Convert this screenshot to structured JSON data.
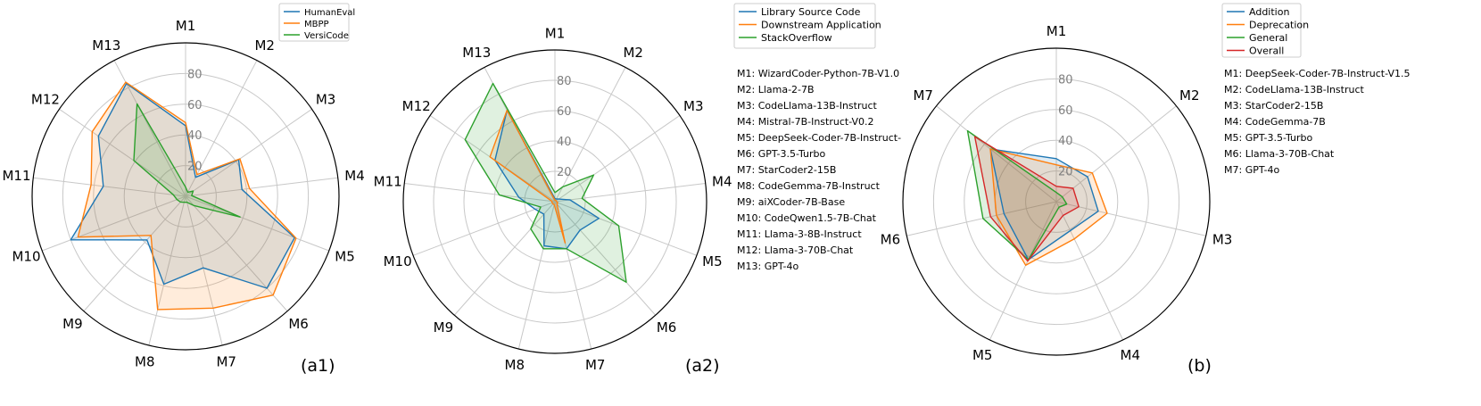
{
  "chart_data": [
    {
      "type": "radar",
      "panel_label": "(a1)",
      "axes": [
        "M1",
        "M2",
        "M3",
        "M4",
        "M5",
        "M6",
        "M7",
        "M8",
        "M9",
        "M10",
        "M11",
        "M12",
        "M13"
      ],
      "rlim": [
        0,
        100
      ],
      "rticks": [
        20,
        40,
        60,
        80
      ],
      "grid": true,
      "legend_placement": "top-right",
      "series": [
        {
          "name": "HumanEval",
          "color": "#1f77b4",
          "values": [
            46,
            14,
            42,
            37,
            76,
            80,
            48,
            59,
            38,
            80,
            54,
            69,
            83
          ]
        },
        {
          "name": "MBPP",
          "color": "#ff7f0e",
          "values": [
            48,
            16,
            43,
            42,
            77,
            86,
            75,
            76,
            34,
            75,
            62,
            74,
            84
          ]
        },
        {
          "name": "VersiCode",
          "color": "#2ca02c",
          "values": [
            6,
            3,
            6,
            4,
            38,
            8,
            4,
            4,
            5,
            6,
            8,
            41,
            68
          ]
        }
      ]
    },
    {
      "type": "radar",
      "panel_label": "(a2)",
      "axes": [
        "M1",
        "M2",
        "M3",
        "M4",
        "M5",
        "M6",
        "M7",
        "M8",
        "M9",
        "M10",
        "M11",
        "M12",
        "M13"
      ],
      "rlim": [
        0,
        100
      ],
      "rticks": [
        20,
        40,
        60,
        80
      ],
      "grid": true,
      "legend_placement": "top-right",
      "series": [
        {
          "name": "Library Source Code",
          "color": "#1f77b4",
          "values": [
            2,
            2,
            3,
            10,
            31,
            25,
            32,
            30,
            11,
            14,
            24,
            48,
            68
          ]
        },
        {
          "name": "Downstream Application",
          "color": "#ff7f0e",
          "values": [
            1,
            1,
            1,
            1,
            2,
            2,
            28,
            2,
            2,
            2,
            2,
            52,
            68
          ]
        },
        {
          "name": "StackOverflow",
          "color": "#2ca02c",
          "values": [
            6,
            11,
            31,
            18,
            45,
            71,
            32,
            32,
            24,
            10,
            37,
            72,
            88
          ]
        }
      ],
      "models": [
        "M1: WizardCoder-Python-7B-V1.0",
        "M2: Llama-2-7B",
        "M3: CodeLlama-13B-Instruct",
        "M4: Mistral-7B-Instruct-V0.2",
        "M5: DeepSeek-Coder-7B-Instruct-",
        "M6: GPT-3.5-Turbo",
        "M7: StarCoder2-15B",
        "M8: CodeGemma-7B-Instruct",
        "M9: aiXCoder-7B-Base",
        "M10: CodeQwen1.5-7B-Chat",
        "M11: Llama-3-8B-Instruct",
        "M12: Llama-3-70B-Chat",
        "M13: GPT-4o"
      ]
    },
    {
      "type": "radar",
      "panel_label": "(b)",
      "axes": [
        "M1",
        "M2",
        "M3",
        "M4",
        "M5",
        "M6",
        "M7"
      ],
      "rlim": [
        0,
        100
      ],
      "rticks": [
        20,
        40,
        60,
        80
      ],
      "grid": true,
      "legend_placement": "top-right",
      "series": [
        {
          "name": "Addition",
          "color": "#1f77b4",
          "values": [
            28,
            26,
            28,
            21,
            42,
            35,
            55
          ]
        },
        {
          "name": "Deprecation",
          "color": "#ff7f0e",
          "values": [
            24,
            30,
            34,
            27,
            46,
            40,
            55
          ]
        },
        {
          "name": "General",
          "color": "#2ca02c",
          "values": [
            6,
            5,
            7,
            4,
            42,
            49,
            74
          ]
        },
        {
          "name": "Overall",
          "color": "#d62728",
          "values": [
            10,
            14,
            15,
            10,
            43,
            44,
            68
          ]
        }
      ],
      "models": [
        "M1: DeepSeek-Coder-7B-Instruct-V1.5",
        "M2: CodeLlama-13B-Instruct",
        "M3: StarCoder2-15B",
        "M4: CodeGemma-7B",
        "M5: GPT-3.5-Turbo",
        "M6: Llama-3-70B-Chat",
        "M7: GPT-4o"
      ]
    }
  ]
}
